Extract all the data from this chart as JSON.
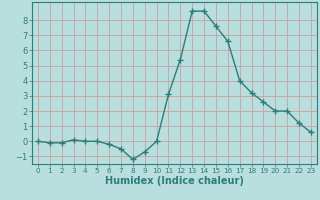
{
  "x": [
    0,
    1,
    2,
    3,
    4,
    5,
    6,
    7,
    8,
    9,
    10,
    11,
    12,
    13,
    14,
    15,
    16,
    17,
    18,
    19,
    20,
    21,
    22,
    23
  ],
  "y": [
    0.0,
    -0.1,
    -0.1,
    0.1,
    0.0,
    0.0,
    -0.2,
    -0.5,
    -1.2,
    -0.7,
    0.0,
    3.1,
    5.4,
    8.6,
    8.6,
    7.6,
    6.6,
    4.0,
    3.2,
    2.6,
    2.0,
    2.0,
    1.2,
    0.6
  ],
  "line_color": "#2d7d78",
  "marker": "+",
  "marker_color": "#2d7d78",
  "bg_color": "#b8dede",
  "grid_color": "#c8a0a0",
  "axis_color": "#2d7d78",
  "xlabel": "Humidex (Indice chaleur)",
  "xlim_min": -0.5,
  "xlim_max": 23.5,
  "ylim_min": -1.5,
  "ylim_max": 9.2,
  "yticks": [
    -1,
    0,
    1,
    2,
    3,
    4,
    5,
    6,
    7,
    8
  ],
  "xticks": [
    0,
    1,
    2,
    3,
    4,
    5,
    6,
    7,
    8,
    9,
    10,
    11,
    12,
    13,
    14,
    15,
    16,
    17,
    18,
    19,
    20,
    21,
    22,
    23
  ],
  "font_color": "#2d7d78",
  "linewidth": 1.0,
  "markersize": 4.0,
  "tick_fontsize": 6.0,
  "xlabel_fontsize": 7.0
}
